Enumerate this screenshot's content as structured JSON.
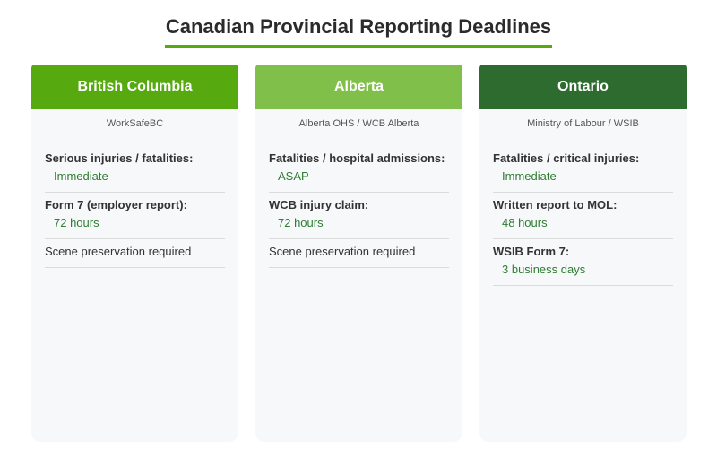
{
  "title": "Canadian Provincial Reporting Deadlines",
  "colors": {
    "accent": "#56aa10",
    "value_text": "#2e7d32",
    "card_bg": "#f7f8fa"
  },
  "provinces": [
    {
      "name": "British Columbia",
      "header_color": "#56aa10",
      "agency": "WorkSafeBC",
      "items": [
        {
          "label": "Serious injuries / fatalities:",
          "value": "Immediate"
        },
        {
          "label": "Form 7 (employer report):",
          "value": "72 hours"
        },
        {
          "label": "Scene preservation required",
          "value": null
        }
      ]
    },
    {
      "name": "Alberta",
      "header_color": "#80c04a",
      "agency": "Alberta OHS / WCB Alberta",
      "items": [
        {
          "label": "Fatalities / hospital admissions:",
          "value": "ASAP"
        },
        {
          "label": "WCB injury claim:",
          "value": "72 hours"
        },
        {
          "label": "Scene preservation required",
          "value": null
        }
      ]
    },
    {
      "name": "Ontario",
      "header_color": "#2e6b2f",
      "agency": "Ministry of Labour / WSIB",
      "items": [
        {
          "label": "Fatalities / critical injuries:",
          "value": "Immediate"
        },
        {
          "label": "Written report to MOL:",
          "value": "48 hours"
        },
        {
          "label": "WSIB Form 7:",
          "value": "3 business days"
        }
      ]
    }
  ]
}
